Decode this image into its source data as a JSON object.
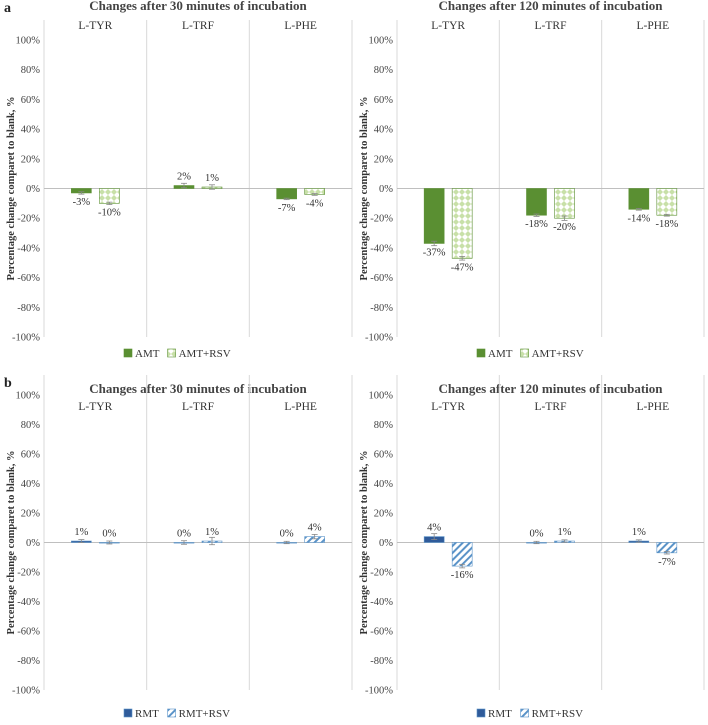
{
  "panels": [
    {
      "letter": "a"
    },
    {
      "letter": "b"
    }
  ],
  "colors": {
    "amt": "#5a8f32",
    "amt_rsv_fill": "#c8e0a8",
    "amt_rsv_pattern": "#ffffff",
    "rmt": "#2f5b9a",
    "rmt_rsv_stripe": "#5a93c8",
    "grid": "#d9d9d9",
    "axis": "#bfbfbf",
    "errorbar": "#888888"
  },
  "chart_data": [
    {
      "type": "bar",
      "panel": "a",
      "title": "Changes after 30 minutes of incubation",
      "ylabel": "Percentage change comparet to blank, %",
      "ylim": [
        -100,
        100
      ],
      "yticks": [
        "100%",
        "80%",
        "60%",
        "40%",
        "20%",
        "0%",
        "-20%",
        "-40%",
        "-60%",
        "-80%",
        "-100%"
      ],
      "categories": [
        "L-TYR",
        "L-TRF",
        "L-PHE"
      ],
      "legend_position": "bottom-left",
      "series": [
        {
          "name": "AMT",
          "style": "amt",
          "values": [
            -3,
            2,
            -7
          ],
          "labels": [
            "-3%",
            "2%",
            "-7%"
          ],
          "errors": [
            0.8,
            1.5,
            0.5
          ]
        },
        {
          "name": "AMT+RSV",
          "style": "amt_rsv",
          "values": [
            -10,
            1,
            -4
          ],
          "labels": [
            "-10%",
            "1%",
            "-4%"
          ],
          "errors": [
            0.8,
            1.5,
            0.6
          ]
        }
      ]
    },
    {
      "type": "bar",
      "panel": "a",
      "title": "Changes after 120 minutes of incubation",
      "ylabel": "Percentage change comparet to blank, %",
      "ylim": [
        -100,
        100
      ],
      "yticks": [
        "100%",
        "80%",
        "60%",
        "40%",
        "20%",
        "0%",
        "-20%",
        "-40%",
        "-60%",
        "-80%",
        "-100%"
      ],
      "categories": [
        "L-TYR",
        "L-TRF",
        "L-PHE"
      ],
      "legend_position": "bottom-left",
      "series": [
        {
          "name": "AMT",
          "style": "amt",
          "values": [
            -37,
            -18,
            -14
          ],
          "labels": [
            "-37%",
            "-18%",
            "-14%"
          ],
          "errors": [
            1.5,
            0.8,
            0.6
          ]
        },
        {
          "name": "AMT+RSV",
          "style": "amt_rsv",
          "values": [
            -47,
            -20,
            -18
          ],
          "labels": [
            "-47%",
            "-20%",
            "-18%"
          ],
          "errors": [
            1.2,
            1.5,
            0.6
          ]
        }
      ]
    },
    {
      "type": "bar",
      "panel": "b",
      "title": "Changes after 30 minutes of incubation",
      "ylabel": "Percentage change comparet to blank, %",
      "ylim": [
        -100,
        100
      ],
      "yticks": [
        "100%",
        "80%",
        "60%",
        "40%",
        "20%",
        "0%",
        "-20%",
        "-40%",
        "-60%",
        "-80%",
        "-100%"
      ],
      "categories": [
        "L-TYR",
        "L-TRF",
        "L-PHE"
      ],
      "legend_position": "bottom-left",
      "series": [
        {
          "name": "RMT",
          "style": "rmt",
          "values": [
            1,
            0,
            0
          ],
          "labels": [
            "1%",
            "0%",
            "0%"
          ],
          "errors": [
            1.0,
            1.2,
            0.8
          ]
        },
        {
          "name": "RMT+RSV",
          "style": "rmt_rsv",
          "values": [
            0,
            1,
            4
          ],
          "labels": [
            "0%",
            "1%",
            "4%"
          ],
          "errors": [
            1.0,
            2.5,
            1.5
          ]
        }
      ]
    },
    {
      "type": "bar",
      "panel": "b",
      "title": "Changes after 120 minutes of incubation",
      "ylabel": "Percentage change comparet to blank, %",
      "ylim": [
        -100,
        100
      ],
      "yticks": [
        "100%",
        "80%",
        "60%",
        "40%",
        "20%",
        "0%",
        "-20%",
        "-40%",
        "-60%",
        "-80%",
        "-100%"
      ],
      "categories": [
        "L-TYR",
        "L-TRF",
        "L-PHE"
      ],
      "legend_position": "bottom-left",
      "series": [
        {
          "name": "RMT",
          "style": "rmt",
          "values": [
            4,
            0,
            1
          ],
          "labels": [
            "4%",
            "0%",
            "1%"
          ],
          "errors": [
            2.0,
            0.8,
            0.8
          ]
        },
        {
          "name": "RMT+RSV",
          "style": "rmt_rsv",
          "values": [
            -16,
            1,
            -7
          ],
          "labels": [
            "-16%",
            "1%",
            "-7%"
          ],
          "errors": [
            1.2,
            0.8,
            0.8
          ]
        }
      ]
    }
  ]
}
